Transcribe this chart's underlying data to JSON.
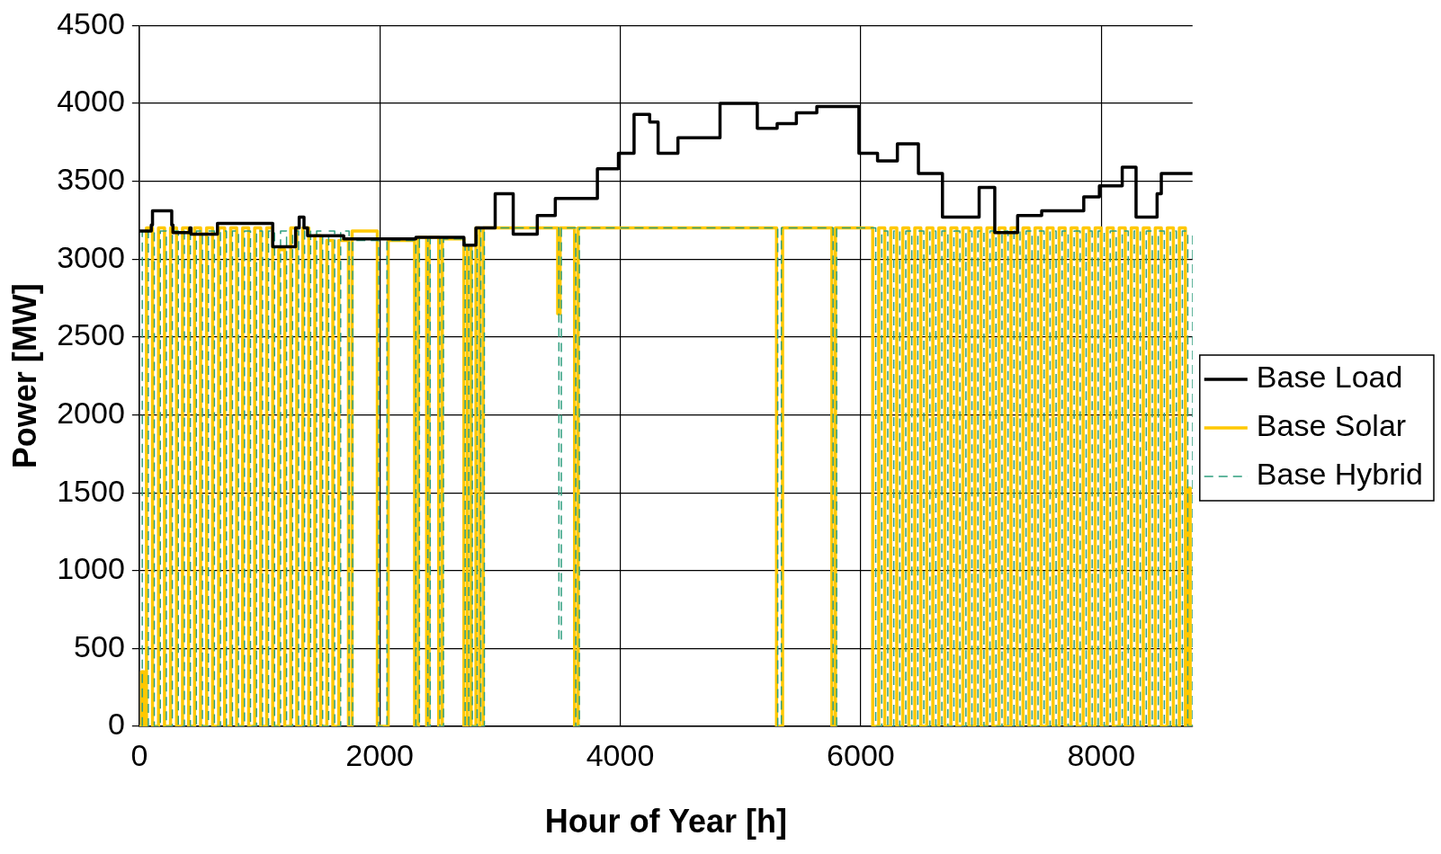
{
  "chart_data": {
    "type": "step",
    "xlabel": "Hour of Year [h]",
    "ylabel": "Power [MW]",
    "xlim": [
      0,
      8760
    ],
    "xticks": [
      0,
      2000,
      4000,
      6000,
      8000
    ],
    "ylim": [
      0,
      4500
    ],
    "yticks": [
      0,
      500,
      1000,
      1500,
      2000,
      2500,
      3000,
      3500,
      4000,
      4500
    ],
    "grid": true,
    "legend": "right",
    "marker": "none",
    "series": [
      {
        "name": "Base Load",
        "color": "#000000",
        "line_style": "solid",
        "x": [
          0,
          100,
          110,
          270,
          280,
          420,
          430,
          650,
          1110,
          1120,
          1300,
          1330,
          1370,
          1400,
          1700,
          2000,
          2300,
          2700,
          2800,
          2960,
          3110,
          3310,
          3460,
          3810,
          3985,
          4115,
          4245,
          4315,
          4480,
          4830,
          5140,
          5305,
          5465,
          5635,
          5985,
          6140,
          6305,
          6480,
          6680,
          6985,
          7115,
          7305,
          7505,
          7855,
          7985,
          8175,
          8290,
          8465,
          8500,
          8760
        ],
        "values": [
          3180,
          3220,
          3310,
          3220,
          3170,
          3200,
          3160,
          3230,
          3080,
          3080,
          3200,
          3270,
          3200,
          3150,
          3130,
          3130,
          3140,
          3090,
          3200,
          3420,
          3160,
          3280,
          3390,
          3580,
          3680,
          3930,
          3880,
          3680,
          3780,
          4000,
          3840,
          3870,
          3940,
          3980,
          3680,
          3630,
          3740,
          3550,
          3270,
          3460,
          3170,
          3280,
          3310,
          3400,
          3470,
          3590,
          3270,
          3420,
          3550,
          3550
        ]
      },
      {
        "name": "Base Solar",
        "color": "#ffc800",
        "line_style": "solid",
        "x": [
          0,
          20,
          40,
          60,
          110,
          160,
          210,
          260,
          310,
          360,
          410,
          460,
          510,
          560,
          610,
          660,
          710,
          760,
          810,
          860,
          910,
          960,
          1010,
          1060,
          1110,
          1160,
          1210,
          1260,
          1310,
          1360,
          1410,
          1460,
          1510,
          1560,
          1610,
          1660,
          1740,
          1770,
          1980,
          2070,
          2290,
          2320,
          2390,
          2410,
          2490,
          2520,
          2700,
          2730,
          2760,
          2800,
          2830,
          2860,
          3480,
          3500,
          3620,
          3650,
          5300,
          5350,
          5760,
          5790,
          6100,
          6150,
          6200,
          6250,
          6300,
          6350,
          6400,
          6450,
          6500,
          6550,
          6600,
          6650,
          6700,
          6750,
          6800,
          6850,
          6900,
          6950,
          7000,
          7050,
          7100,
          7150,
          7200,
          7250,
          7300,
          7350,
          7400,
          7450,
          7500,
          7550,
          7600,
          7650,
          7700,
          7750,
          7800,
          7850,
          7900,
          7950,
          8000,
          8050,
          8100,
          8150,
          8200,
          8250,
          8300,
          8350,
          8400,
          8450,
          8500,
          8550,
          8600,
          8650,
          8700,
          8720,
          8740,
          8760
        ],
        "values": [
          0,
          350,
          0,
          3200,
          0,
          3200,
          0,
          3200,
          0,
          3200,
          0,
          3200,
          0,
          3200,
          0,
          3200,
          0,
          3200,
          0,
          3200,
          0,
          3200,
          0,
          3200,
          0,
          3060,
          0,
          3200,
          0,
          3200,
          0,
          3150,
          0,
          3120,
          0,
          3120,
          0,
          3180,
          0,
          3120,
          0,
          3140,
          0,
          3140,
          0,
          3130,
          0,
          3090,
          0,
          3200,
          0,
          3200,
          2650,
          3200,
          0,
          3200,
          0,
          3200,
          0,
          3200,
          0,
          3200,
          0,
          3200,
          0,
          3200,
          0,
          3200,
          0,
          3200,
          0,
          3200,
          0,
          3200,
          0,
          3200,
          0,
          3200,
          0,
          3200,
          0,
          3200,
          0,
          3200,
          0,
          3200,
          0,
          3200,
          0,
          3200,
          0,
          3200,
          0,
          3200,
          0,
          3200,
          0,
          3200,
          0,
          3200,
          0,
          3200,
          0,
          3200,
          0,
          3200,
          0,
          3200,
          0,
          3200,
          0,
          3200,
          0,
          1530,
          0,
          0
        ]
      },
      {
        "name": "Base Hybrid",
        "color": "#2e9e7e",
        "line_style": "dashed",
        "x": [
          0,
          25,
          75,
          125,
          175,
          225,
          275,
          325,
          375,
          425,
          475,
          525,
          575,
          625,
          675,
          725,
          775,
          825,
          875,
          925,
          975,
          1025,
          1075,
          1125,
          1175,
          1225,
          1275,
          1325,
          1375,
          1425,
          1475,
          1525,
          1575,
          1625,
          1675,
          1745,
          1775,
          1990,
          2060,
          2300,
          2330,
          2400,
          2420,
          2500,
          2530,
          2710,
          2740,
          2770,
          2810,
          2840,
          2870,
          3490,
          3510,
          3630,
          3660,
          5310,
          5340,
          5770,
          5800,
          6125,
          6175,
          6225,
          6275,
          6325,
          6375,
          6425,
          6475,
          6525,
          6575,
          6625,
          6675,
          6725,
          6775,
          6825,
          6875,
          6925,
          6975,
          7025,
          7075,
          7125,
          7175,
          7225,
          7275,
          7325,
          7375,
          7425,
          7475,
          7525,
          7575,
          7625,
          7675,
          7725,
          7775,
          7825,
          7875,
          7925,
          7975,
          8025,
          8075,
          8125,
          8175,
          8225,
          8275,
          8325,
          8375,
          8425,
          8475,
          8525,
          8575,
          8625,
          8675,
          8720,
          8760
        ],
        "values": [
          3180,
          0,
          3180,
          0,
          3180,
          0,
          3180,
          0,
          3180,
          0,
          3180,
          0,
          3180,
          0,
          3180,
          0,
          3180,
          0,
          3180,
          0,
          3180,
          0,
          3180,
          0,
          3180,
          0,
          3180,
          0,
          3180,
          0,
          3180,
          0,
          3180,
          0,
          3180,
          0,
          3120,
          0,
          3120,
          0,
          3140,
          0,
          3140,
          0,
          3130,
          0,
          3090,
          0,
          3200,
          0,
          3200,
          550,
          3200,
          0,
          3200,
          0,
          3200,
          0,
          3200,
          0,
          3180,
          0,
          3180,
          0,
          3180,
          0,
          3180,
          0,
          3180,
          0,
          3180,
          0,
          3180,
          0,
          3180,
          0,
          3180,
          0,
          3180,
          0,
          3180,
          0,
          3180,
          0,
          3180,
          0,
          3180,
          0,
          3180,
          0,
          3180,
          0,
          3180,
          0,
          3180,
          0,
          3180,
          0,
          3180,
          0,
          3180,
          0,
          3180,
          0,
          3180,
          0,
          3180,
          0,
          3180,
          0,
          3180,
          0,
          3180
        ]
      }
    ]
  }
}
